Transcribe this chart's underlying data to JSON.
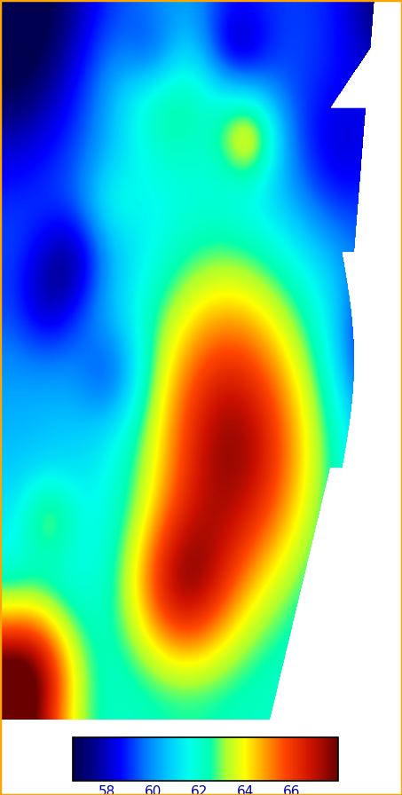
{
  "colorbar_ticks": [
    58,
    60,
    62,
    64,
    66
  ],
  "vmin": 56.5,
  "vmax": 68.0,
  "background_color": "#FFFFFF",
  "border_color": "#FFA500",
  "fig_width": 4.53,
  "fig_height": 8.96,
  "dpi": 100,
  "colorbar_label_color": "#0000AA",
  "colorbar_fontsize": 11,
  "colormap_nodes": [
    [
      0.0,
      "#000050"
    ],
    [
      0.08,
      "#00008B"
    ],
    [
      0.18,
      "#0000FF"
    ],
    [
      0.28,
      "#0080FF"
    ],
    [
      0.36,
      "#00C8FF"
    ],
    [
      0.44,
      "#00FFEE"
    ],
    [
      0.52,
      "#00FFB0"
    ],
    [
      0.58,
      "#ADFF2F"
    ],
    [
      0.65,
      "#FFFF00"
    ],
    [
      0.72,
      "#FFA500"
    ],
    [
      0.8,
      "#FF4500"
    ],
    [
      0.9,
      "#CC1100"
    ],
    [
      1.0,
      "#6B0000"
    ]
  ]
}
